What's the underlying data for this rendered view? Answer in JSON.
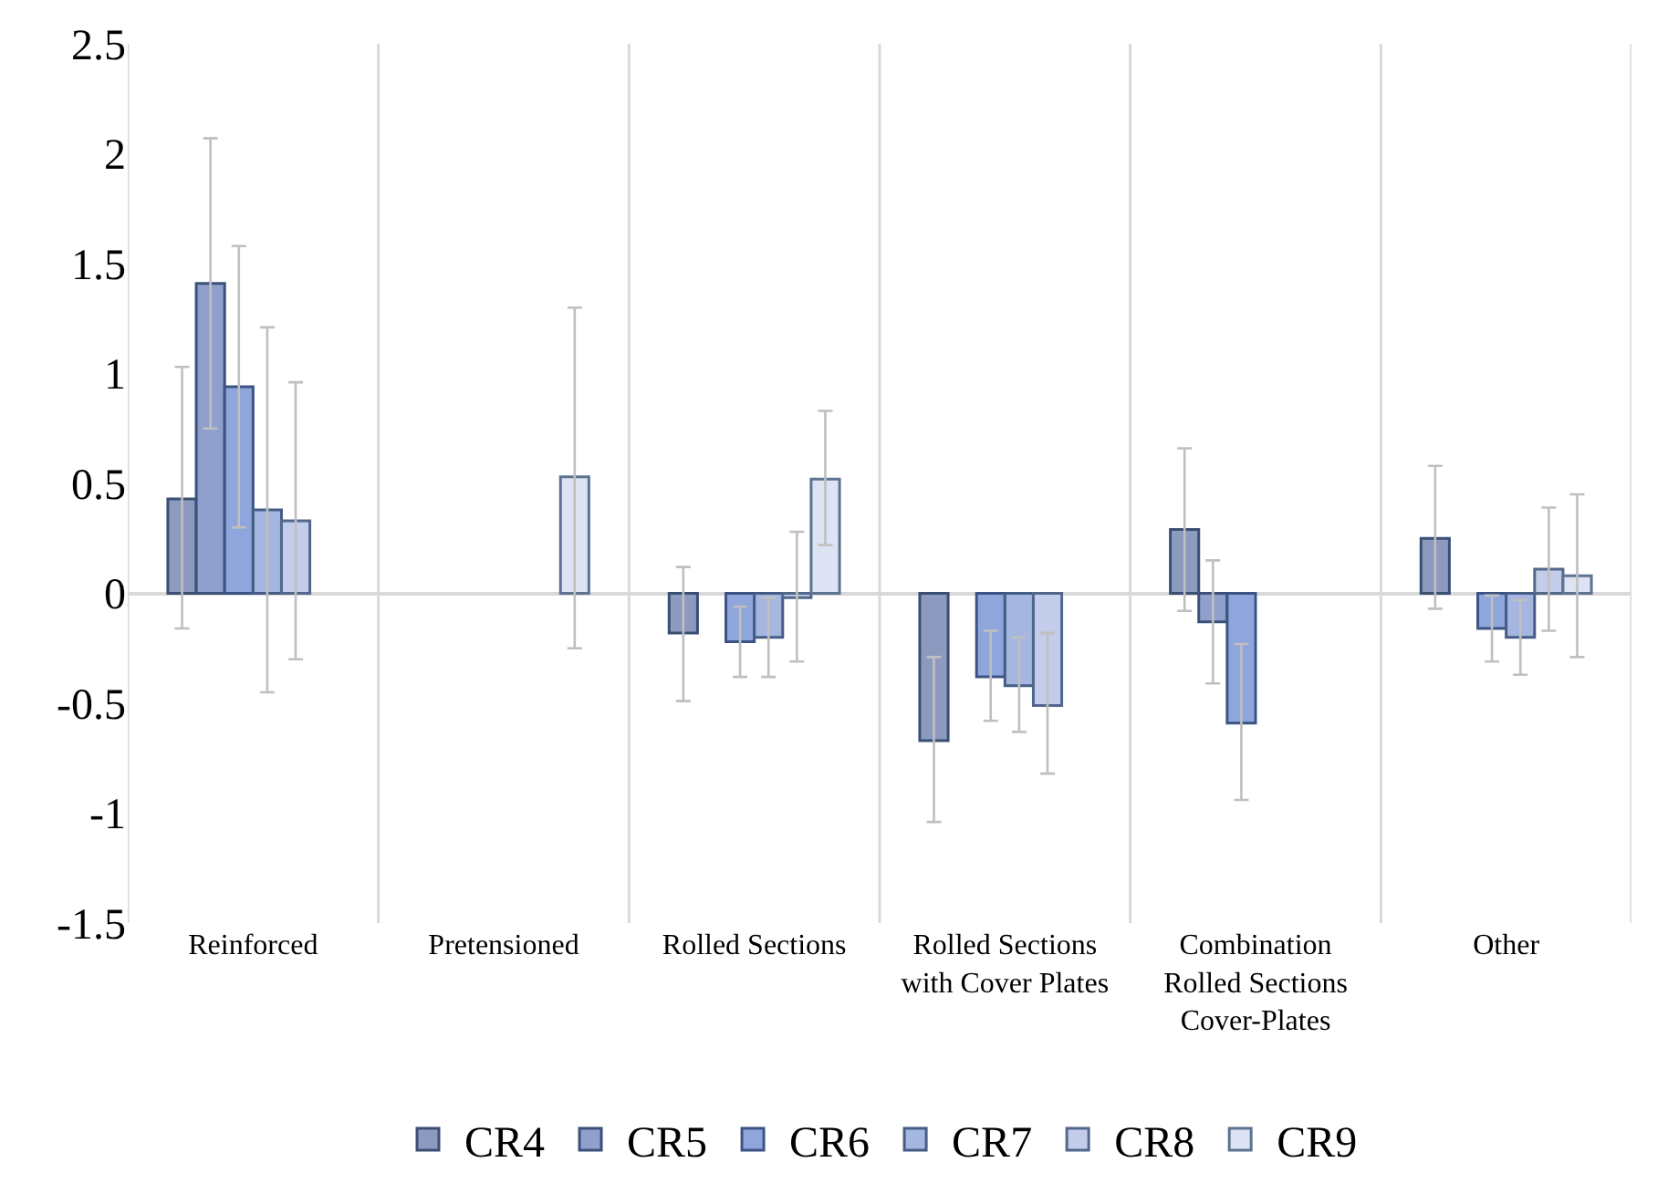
{
  "chart_data": {
    "type": "bar",
    "categories": [
      "Reinforced",
      "Pretensioned",
      "Rolled Sections",
      "Rolled Sections with Cover Plates",
      "Combination Rolled Sections Cover-Plates",
      "Other"
    ],
    "series": [
      {
        "name": "CR4",
        "color": "#8d9ac0",
        "values": [
          0.43,
          null,
          -0.18,
          -0.67,
          0.29,
          0.25
        ],
        "errors": [
          [
            -0.16,
            1.03
          ],
          null,
          [
            -0.49,
            0.12
          ],
          [
            -1.04,
            -0.29
          ],
          [
            -0.08,
            0.66
          ],
          [
            -0.07,
            0.58
          ]
        ]
      },
      {
        "name": "CR5",
        "color": "#8fa0cc",
        "values": [
          1.41,
          null,
          null,
          null,
          -0.13,
          null
        ],
        "errors": [
          [
            0.75,
            2.07
          ],
          null,
          null,
          null,
          [
            -0.41,
            0.15
          ],
          null
        ]
      },
      {
        "name": "CR6",
        "color": "#8fa6dc",
        "values": [
          0.94,
          null,
          -0.22,
          -0.38,
          -0.59,
          -0.16
        ],
        "errors": [
          [
            0.3,
            1.58
          ],
          null,
          [
            -0.38,
            -0.06
          ],
          [
            -0.58,
            -0.17
          ],
          [
            -0.94,
            -0.23
          ],
          [
            -0.31,
            -0.01
          ]
        ]
      },
      {
        "name": "CR7",
        "color": "#a5b7e0",
        "values": [
          0.38,
          null,
          -0.2,
          -0.42,
          null,
          -0.2
        ],
        "errors": [
          [
            -0.45,
            1.21
          ],
          null,
          [
            -0.38,
            -0.02
          ],
          [
            -0.63,
            -0.2
          ],
          null,
          [
            -0.37,
            -0.03
          ]
        ]
      },
      {
        "name": "CR8",
        "color": "#c3cde9",
        "values": [
          0.33,
          null,
          -0.02,
          -0.51,
          null,
          0.11
        ],
        "errors": [
          [
            -0.3,
            0.96
          ],
          null,
          [
            -0.31,
            0.28
          ],
          [
            -0.82,
            -0.18
          ],
          null,
          [
            -0.17,
            0.39
          ]
        ]
      },
      {
        "name": "CR9",
        "color": "#dde3f2",
        "values": [
          null,
          0.53,
          0.52,
          null,
          null,
          0.08
        ],
        "errors": [
          null,
          [
            -0.25,
            1.3
          ],
          [
            0.22,
            0.83
          ],
          null,
          null,
          [
            -0.29,
            0.45
          ]
        ]
      }
    ],
    "ylim": [
      -1.5,
      2.5
    ],
    "yticks": [
      -1.5,
      -1,
      -0.5,
      0,
      0.5,
      1,
      1.5,
      2,
      2.5
    ],
    "grid": "x",
    "legend": "bottom"
  }
}
